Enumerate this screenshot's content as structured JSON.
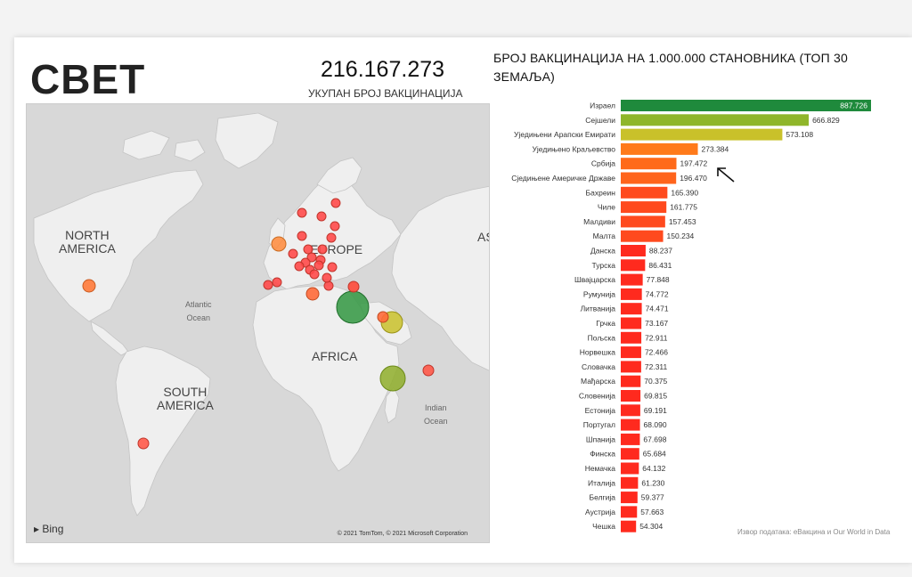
{
  "header": {
    "title": "СВЕТ",
    "total_value": "216.167.273",
    "total_label": "УКУПАН БРОЈ ВАКЦИНАЦИЈА"
  },
  "map": {
    "labels": {
      "north_america": "NORTH\nAMERICA",
      "south_america": "SOUTH\nAMERICA",
      "europe": "EUROPE",
      "africa": "AFRICA",
      "asia": "AS",
      "atlantic": "Atlantic\nOcean",
      "indian": "Indian\nOcean"
    },
    "bing_label": "Bing",
    "copyright": "© 2021 TomTom, © 2021 Microsoft Corporation"
  },
  "chart_data": {
    "type": "bar",
    "orientation": "horizontal",
    "title": "БРОЈ ВАКЦИНАЦИЈА НА 1.000.000 СТАНОВНИКА (ТОП 30 ЗЕМАЉА)",
    "categories": [
      "Израел",
      "Сејшели",
      "Уједињени Арапски Емирати",
      "Уједињено Краљевство",
      "Србија",
      "Сједињене Америчке Државе",
      "Бахреин",
      "Чиле",
      "Малдиви",
      "Малта",
      "Данска",
      "Турска",
      "Швајцарска",
      "Румунија",
      "Литванија",
      "Грчка",
      "Пољска",
      "Норвешка",
      "Словачка",
      "Мађарска",
      "Словенија",
      "Естонија",
      "Португал",
      "Шпанија",
      "Финска",
      "Немачка",
      "Италија",
      "Белгија",
      "Аустрија",
      "Чешка"
    ],
    "values": [
      887726,
      666829,
      573108,
      273384,
      197472,
      196470,
      165390,
      161775,
      157453,
      150234,
      88237,
      86431,
      77848,
      74772,
      74471,
      73167,
      72911,
      72466,
      72311,
      70375,
      69815,
      69191,
      68090,
      67698,
      65684,
      64132,
      61230,
      59377,
      57663,
      54304
    ],
    "value_labels": [
      "887.726",
      "666.829",
      "573.108",
      "273.384",
      "197.472",
      "196.470",
      "165.390",
      "161.775",
      "157.453",
      "150.234",
      "88.237",
      "86.431",
      "77.848",
      "74.772",
      "74.471",
      "73.167",
      "72.911",
      "72.466",
      "72.311",
      "70.375",
      "69.815",
      "69.191",
      "68.090",
      "67.698",
      "65.684",
      "64.132",
      "61.230",
      "59.377",
      "57.663",
      "54.304"
    ],
    "bar_colors": [
      "#1f8a3c",
      "#8fb62a",
      "#c9c12a",
      "#ff7a1a",
      "#ff6a1a",
      "#ff641c",
      "#ff4a1e",
      "#ff4a1e",
      "#ff4a1e",
      "#ff4a1e",
      "#ff2a1e",
      "#ff2a1e",
      "#ff2a1e",
      "#ff2a1e",
      "#ff2a1e",
      "#ff2a1e",
      "#ff2a1e",
      "#ff2a1e",
      "#ff2a1e",
      "#ff2a1e",
      "#ff2a1e",
      "#ff2a1e",
      "#ff2a1e",
      "#ff2a1e",
      "#ff2a1e",
      "#ff2a1e",
      "#ff2a1e",
      "#ff2a1e",
      "#ff2a1e",
      "#ff2a1e"
    ],
    "xlim": [
      0,
      887726
    ],
    "grid": false,
    "legend": "none"
  },
  "source": "Извор података: еВакцина и Our World in Data"
}
